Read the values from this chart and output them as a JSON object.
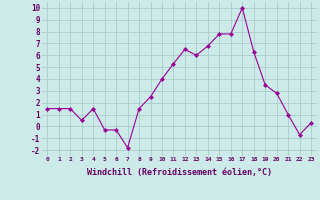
{
  "x": [
    0,
    1,
    2,
    3,
    4,
    5,
    6,
    7,
    8,
    9,
    10,
    11,
    12,
    13,
    14,
    15,
    16,
    17,
    18,
    19,
    20,
    21,
    22,
    23
  ],
  "y": [
    1.5,
    1.5,
    1.5,
    0.5,
    1.5,
    -0.3,
    -0.3,
    -1.8,
    1.5,
    2.5,
    4.0,
    5.3,
    6.5,
    6.0,
    6.8,
    7.8,
    7.8,
    10.0,
    6.3,
    3.5,
    2.8,
    1.0,
    -0.7,
    0.3
  ],
  "line_color": "#990099",
  "marker": "D",
  "marker_size": 2.0,
  "bg_color": "#cceae7",
  "grid_color": "#aacccc",
  "xlabel": "Windchill (Refroidissement éolien,°C)",
  "ylim": [
    -2.5,
    10.5
  ],
  "xlim": [
    -0.5,
    23.5
  ],
  "yticks": [
    -2,
    -1,
    0,
    1,
    2,
    3,
    4,
    5,
    6,
    7,
    8,
    9,
    10
  ],
  "xtick_labels": [
    "0",
    "1",
    "2",
    "3",
    "4",
    "5",
    "6",
    "7",
    "8",
    "9",
    "10",
    "11",
    "12",
    "13",
    "14",
    "15",
    "16",
    "17",
    "18",
    "19",
    "20",
    "21",
    "22",
    "23"
  ]
}
